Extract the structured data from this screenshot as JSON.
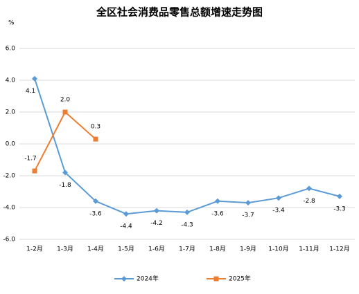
{
  "chart_data": {
    "type": "line",
    "title": "全区社会消费品零售总额增速走势图",
    "y_label": "%",
    "categories": [
      "1-2月",
      "1-3月",
      "1-4月",
      "1-5月",
      "1-6月",
      "1-7月",
      "1-8月",
      "1-9月",
      "1-10月",
      "1-11月",
      "1-12月"
    ],
    "series": [
      {
        "name": "2024年",
        "color": "#5b9bd5",
        "marker": "diamond",
        "values": [
          4.1,
          -1.8,
          -3.6,
          -4.4,
          -4.2,
          -4.3,
          -3.6,
          -3.7,
          -3.4,
          -2.8,
          -3.3
        ],
        "value_labels": [
          "4.1",
          "-1.8",
          "-3.6",
          "-4.4",
          "-4.2",
          "-4.3",
          "-3.6",
          "-3.7",
          "-3.4",
          "-2.8",
          "-3.3"
        ]
      },
      {
        "name": "2025年",
        "color": "#ed7d31",
        "marker": "square",
        "values": [
          -1.7,
          2.0,
          0.3,
          null,
          null,
          null,
          null,
          null,
          null,
          null,
          null
        ],
        "value_labels": [
          "-1.7",
          "2.0",
          "0.3",
          null,
          null,
          null,
          null,
          null,
          null,
          null,
          null
        ]
      }
    ],
    "ylim": [
      -6,
      6
    ],
    "yticks": [
      {
        "value": -6,
        "label": "-6.0"
      },
      {
        "value": -4,
        "label": "-4.0"
      },
      {
        "value": -2,
        "label": "-2.0"
      },
      {
        "value": 0,
        "label": "0.0"
      },
      {
        "value": 2,
        "label": "2.0"
      },
      {
        "value": 4,
        "label": "4.0"
      },
      {
        "value": 6,
        "label": "6.0"
      }
    ],
    "grid": true,
    "legend": "bottom"
  }
}
